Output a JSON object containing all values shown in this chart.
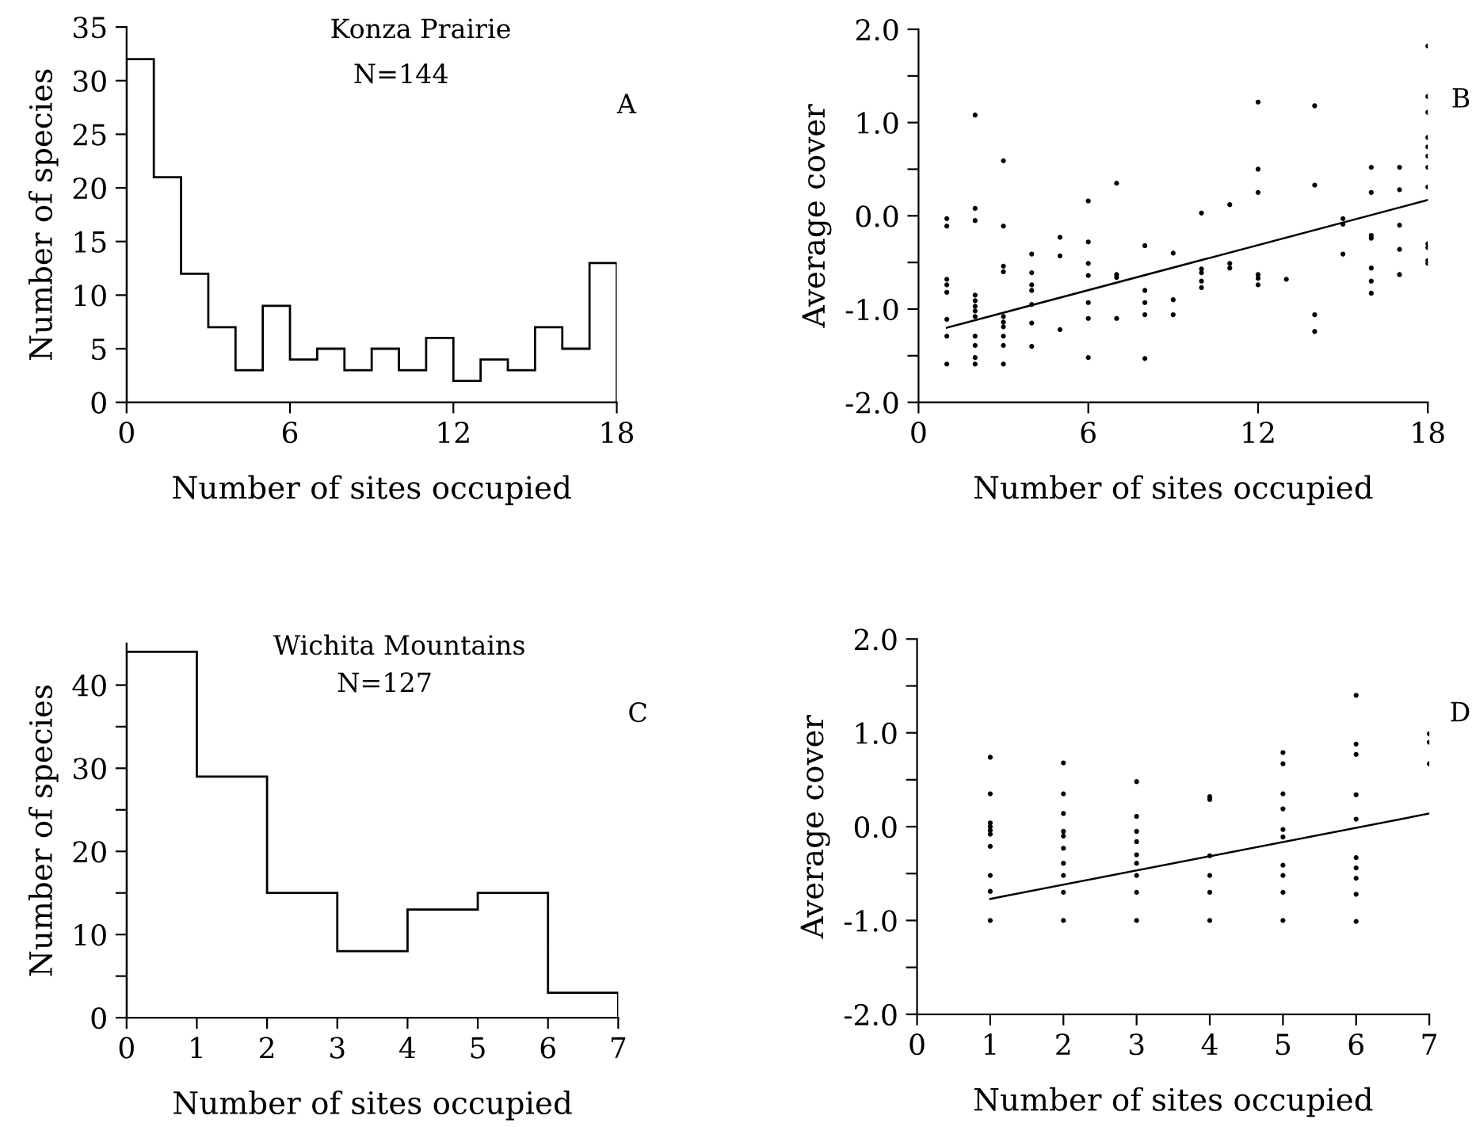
{
  "chart_data": [
    {
      "type": "histogram",
      "xlabel": "Number of sites occupied",
      "ylabel": "Number of species",
      "annotations": [
        "Konza Prairie",
        "N=144",
        "A"
      ],
      "bins": [
        0,
        1,
        2,
        3,
        4,
        5,
        6,
        7,
        8,
        9,
        10,
        11,
        12,
        13,
        14,
        15,
        16,
        17,
        18
      ],
      "values": [
        32,
        21,
        12,
        7,
        3,
        9,
        4,
        5,
        3,
        5,
        3,
        6,
        2,
        4,
        3,
        7,
        5,
        13
      ],
      "color": "#000000",
      "xlim": [
        0,
        18
      ],
      "xticks": [
        0,
        6,
        12,
        18
      ],
      "ylim": [
        0,
        35
      ],
      "yticks": [
        0,
        5,
        10,
        15,
        20,
        25,
        30,
        35
      ],
      "grid": false,
      "legend": false
    },
    {
      "type": "scatter",
      "xlabel": "Number of sites occupied",
      "ylabel": "Average cover",
      "annotations": [
        "B"
      ],
      "marker": "circle",
      "series": [
        {
          "color": "#000000",
          "x": [
            1,
            1,
            1,
            1,
            1,
            1,
            1,
            1,
            2,
            2,
            2,
            2,
            2,
            2,
            2,
            2,
            2,
            2,
            2,
            2,
            3,
            3,
            3,
            3,
            3,
            3,
            3,
            3,
            3,
            3,
            4,
            4,
            4,
            4,
            4,
            4,
            4,
            5,
            5,
            5,
            6,
            6,
            6,
            6,
            6,
            6,
            6,
            7,
            7,
            7,
            7,
            8,
            8,
            8,
            8,
            8,
            9,
            9,
            9,
            10,
            10,
            10,
            10,
            10,
            11,
            11,
            11,
            12,
            12,
            12,
            12,
            12,
            12,
            13,
            14,
            14,
            14,
            14,
            15,
            15,
            15,
            16,
            16,
            16,
            16,
            16,
            16,
            16,
            17,
            17,
            17,
            17,
            17,
            18,
            18,
            18,
            18,
            18,
            18,
            18,
            18,
            18,
            18,
            18,
            18
          ],
          "values": [
            -0.03,
            -0.11,
            -0.68,
            -0.74,
            -0.82,
            -1.11,
            -1.29,
            -1.59,
            1.08,
            0.08,
            -0.05,
            -0.85,
            -0.91,
            -0.97,
            -1.02,
            -1.08,
            -1.29,
            -1.39,
            -1.52,
            -1.59,
            0.59,
            -0.11,
            -0.54,
            -0.6,
            -1.08,
            -1.14,
            -1.19,
            -1.29,
            -1.39,
            -1.59,
            -0.41,
            -0.61,
            -0.74,
            -0.8,
            -0.95,
            -1.15,
            -1.4,
            -0.23,
            -0.43,
            -1.22,
            0.16,
            -0.28,
            -0.51,
            -0.64,
            -0.93,
            -1.1,
            -1.52,
            0.35,
            -0.63,
            -0.66,
            -1.1,
            -0.32,
            -0.8,
            -0.93,
            -1.06,
            -1.53,
            -0.4,
            -0.9,
            -1.06,
            0.03,
            -0.57,
            -0.61,
            -0.7,
            -0.77,
            0.12,
            -0.51,
            -0.56,
            1.22,
            0.5,
            0.25,
            -0.63,
            -0.67,
            -0.74,
            -0.68,
            1.18,
            0.33,
            -1.06,
            -1.24,
            -0.03,
            -0.09,
            -0.41,
            0.52,
            0.25,
            -0.21,
            -0.24,
            -0.56,
            -0.7,
            -0.83,
            0.52,
            0.28,
            -0.1,
            -0.36,
            -0.63,
            1.82,
            1.28,
            1.11,
            0.84,
            0.74,
            0.64,
            0.52,
            0.31,
            -0.3,
            -0.34,
            -0.48,
            -0.51
          ]
        },
        {
          "type": "line",
          "color": "#000000",
          "marker": "none",
          "line_style": "solid",
          "x": [
            1,
            18
          ],
          "values": [
            -1.2,
            0.17
          ]
        }
      ],
      "xlim": [
        0,
        18
      ],
      "xticks": [
        0,
        6,
        12,
        18
      ],
      "ylim": [
        -2,
        2
      ],
      "yticks": [
        {
          "value": -2,
          "label": "-2.0"
        },
        {
          "value": -1.5,
          "label": null
        },
        {
          "value": -1,
          "label": "-1.0"
        },
        {
          "value": -0.5,
          "label": null
        },
        {
          "value": 0,
          "label": "0.0"
        },
        {
          "value": 0.5,
          "label": null
        },
        {
          "value": 1,
          "label": "1.0"
        },
        {
          "value": 1.5,
          "label": null
        },
        {
          "value": 2,
          "label": "2.0"
        }
      ],
      "grid": false,
      "legend": false
    },
    {
      "type": "histogram",
      "xlabel": "Number of sites occupied",
      "ylabel": "Number of species",
      "annotations": [
        "Wichita Mountains",
        "N=127",
        "C"
      ],
      "bins": [
        0,
        1,
        2,
        3,
        4,
        5,
        6,
        7
      ],
      "values": [
        44,
        29,
        15,
        8,
        13,
        15,
        3
      ],
      "color": "#000000",
      "xlim": [
        0,
        7
      ],
      "xticks": [
        0,
        1,
        2,
        3,
        4,
        5,
        6,
        7
      ],
      "ylim": [
        0,
        45
      ],
      "yticks": [
        0,
        {
          "value": 5,
          "label": null
        },
        10,
        {
          "value": 15,
          "label": null
        },
        20,
        {
          "value": 25,
          "label": null
        },
        30,
        {
          "value": 35,
          "label": null
        },
        40
      ],
      "grid": false,
      "legend": false
    },
    {
      "type": "scatter",
      "xlabel": "Number of sites occupied",
      "ylabel": "Average cover",
      "annotations": [
        "D"
      ],
      "marker": "circle",
      "series": [
        {
          "color": "#000000",
          "x": [
            1,
            1,
            1,
            1,
            1,
            1,
            1,
            1,
            1,
            1,
            2,
            2,
            2,
            2,
            2,
            2,
            2,
            2,
            2,
            2,
            3,
            3,
            3,
            3,
            3,
            3,
            3,
            3,
            3,
            4,
            4,
            4,
            4,
            4,
            4,
            5,
            5,
            5,
            5,
            5,
            5,
            5,
            5,
            5,
            5,
            6,
            6,
            6,
            6,
            6,
            6,
            6,
            6,
            6,
            6,
            7,
            7,
            7
          ],
          "values": [
            0.74,
            0.35,
            0.04,
            0.0,
            -0.04,
            -0.08,
            -0.21,
            -0.52,
            -0.69,
            -1.0,
            0.68,
            0.35,
            0.14,
            -0.05,
            -0.1,
            -0.23,
            -0.39,
            -0.52,
            -0.7,
            -1.0,
            0.48,
            0.11,
            -0.05,
            -0.16,
            -0.3,
            -0.39,
            -0.52,
            -0.7,
            -1.0,
            0.32,
            0.29,
            -0.31,
            -0.52,
            -0.7,
            -1.0,
            0.79,
            0.67,
            0.35,
            0.19,
            -0.03,
            -0.11,
            -0.41,
            -0.52,
            -0.7,
            -1.0,
            1.4,
            0.88,
            0.77,
            0.34,
            0.08,
            -0.33,
            -0.44,
            -0.55,
            -0.72,
            -1.01,
            0.99,
            0.9,
            0.67
          ]
        },
        {
          "type": "line",
          "color": "#000000",
          "marker": "none",
          "line_style": "solid",
          "x": [
            1,
            7
          ],
          "values": [
            -0.77,
            0.14
          ]
        }
      ],
      "xlim": [
        0,
        7
      ],
      "xticks": [
        0,
        1,
        2,
        3,
        4,
        5,
        6,
        7
      ],
      "ylim": [
        -2,
        2
      ],
      "yticks": [
        {
          "value": -2,
          "label": "-2.0"
        },
        {
          "value": -1.5,
          "label": null
        },
        {
          "value": -1,
          "label": "-1.0"
        },
        {
          "value": -0.5,
          "label": null
        },
        {
          "value": 0,
          "label": "0.0"
        },
        {
          "value": 0.5,
          "label": null
        },
        {
          "value": 1,
          "label": "1.0"
        },
        {
          "value": 1.5,
          "label": null
        },
        {
          "value": 2,
          "label": "2.0"
        }
      ],
      "grid": false,
      "legend": false
    }
  ]
}
